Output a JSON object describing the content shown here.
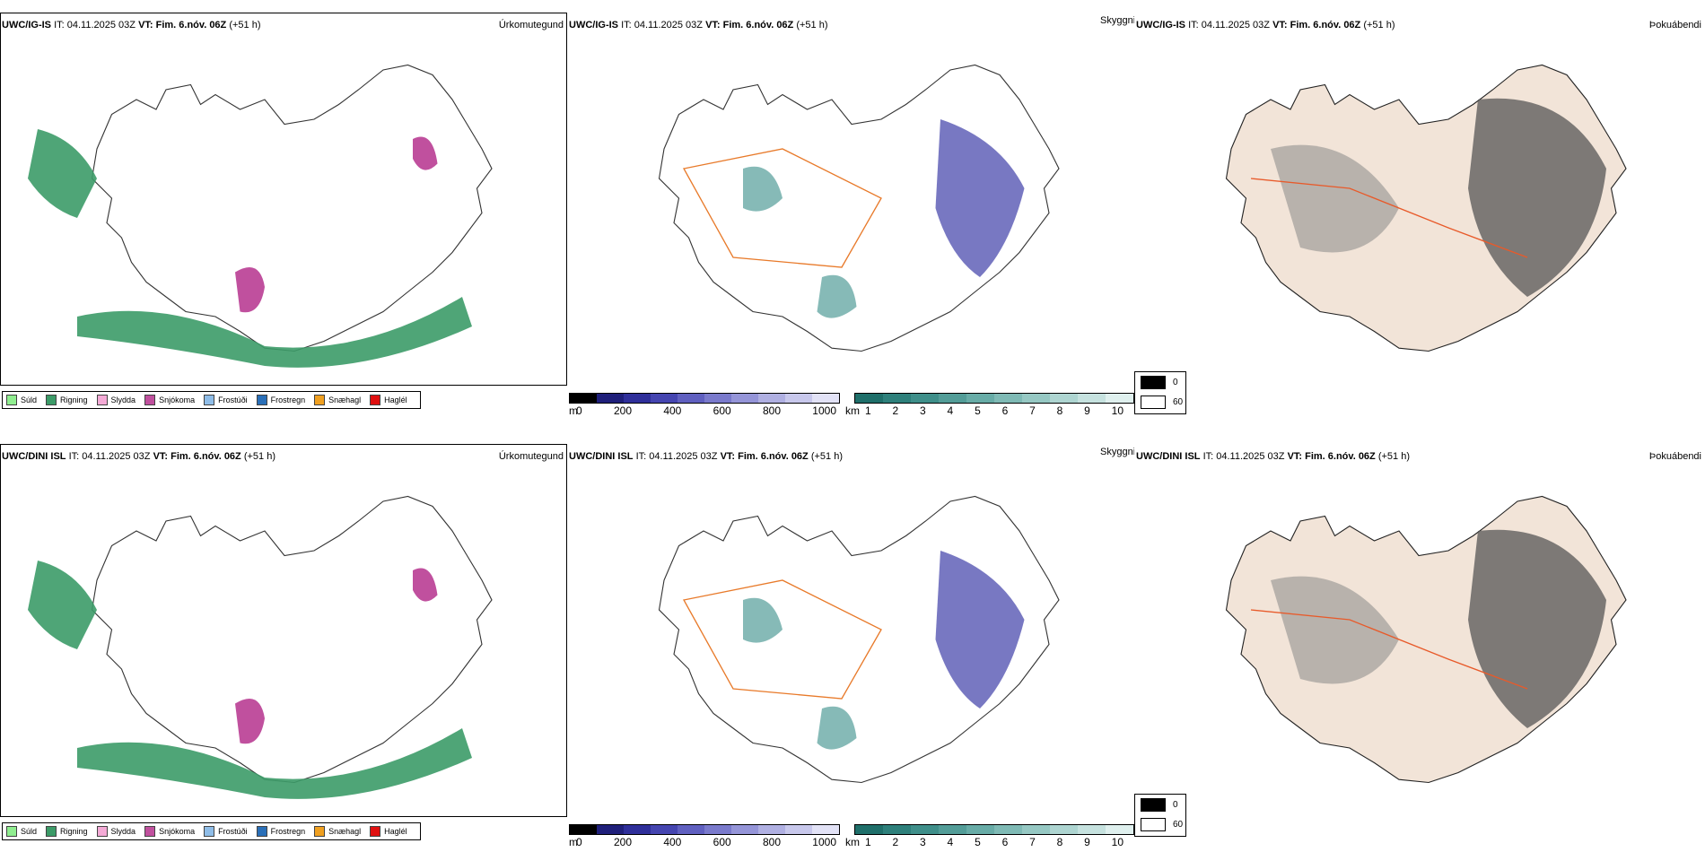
{
  "rows": [
    {
      "precip": {
        "model": "UWC/IG-IS",
        "it_label": "IT:",
        "it_value": "04.11.2025 03Z",
        "vt_label": "VT:",
        "vt_value": "Fim. 6.nóv. 06Z",
        "lead": "(+51 h)",
        "field": "Úrkomutegund"
      },
      "cloud": {
        "model": "UWC/IG-IS",
        "it_label": "IT:",
        "it_value": "04.11.2025 03Z",
        "vt_label": "VT:",
        "vt_value": "Fim. 6.nóv. 06Z",
        "lead": "(+51 h)",
        "field": "Skyggni"
      },
      "fog": {
        "model": "UWC/IG-IS",
        "it_label": "IT:",
        "it_value": "04.11.2025 03Z",
        "vt_label": "VT:",
        "vt_value": "Fim. 6.nóv. 06Z",
        "lead": "(+51 h)",
        "field": "Þokuábendi"
      }
    },
    {
      "precip": {
        "model": "UWC/DINI ISL",
        "it_label": "IT:",
        "it_value": "04.11.2025 03Z",
        "vt_label": "VT:",
        "vt_value": "Fim. 6.nóv. 06Z",
        "lead": "(+51 h)",
        "field": "Úrkomutegund"
      },
      "cloud": {
        "model": "UWC/DINI ISL",
        "it_label": "IT:",
        "it_value": "04.11.2025 03Z",
        "vt_label": "VT:",
        "vt_value": "Fim. 6.nóv. 06Z",
        "lead": "(+51 h)",
        "field": "Skyggni"
      },
      "fog": {
        "model": "UWC/DINI ISL",
        "it_label": "IT:",
        "it_value": "04.11.2025 03Z",
        "vt_label": "VT:",
        "vt_value": "Fim. 6.nóv. 06Z",
        "lead": "(+51 h)",
        "field": "Þokuábendi"
      }
    }
  ],
  "precip_legend": [
    {
      "label": "Súld",
      "color": "#90ee90"
    },
    {
      "label": "Rigning",
      "color": "#3c9b68"
    },
    {
      "label": "Slydda",
      "color": "#f4aad6"
    },
    {
      "label": "Snjókoma",
      "color": "#c0509e"
    },
    {
      "label": "Frostúði",
      "color": "#8fbde8"
    },
    {
      "label": "Frostregn",
      "color": "#2a6fb8"
    },
    {
      "label": "Snæhagl",
      "color": "#f0a020"
    },
    {
      "label": "Haglél",
      "color": "#e01010"
    }
  ],
  "ceiling_scale": {
    "unit": "m",
    "ticks": [
      "0",
      "200",
      "400",
      "600",
      "800",
      "1000"
    ],
    "colors": [
      "#000000",
      "#1f1f7a",
      "#2f2f9a",
      "#4545b0",
      "#6060c0",
      "#7a7acc",
      "#9595d8",
      "#b0b0e2",
      "#c8c8ec",
      "#e2e2f6"
    ]
  },
  "visibility_scale": {
    "unit": "km",
    "ticks": [
      "1",
      "2",
      "3",
      "4",
      "5",
      "6",
      "7",
      "8",
      "9",
      "10"
    ],
    "colors": [
      "#1f6f6a",
      "#2e807b",
      "#3f8f8a",
      "#539d98",
      "#68aca7",
      "#7fbab5",
      "#96c8c3",
      "#aed5d1",
      "#c6e2df",
      "#dff0ee"
    ]
  },
  "fog_legend": [
    {
      "label": "0",
      "color": "#000000"
    },
    {
      "label": "60",
      "color": "#ffffff"
    }
  ],
  "colors": {
    "land": "#f2e4d8",
    "roads": "#e87a2a",
    "rivers": "#6a7fd8",
    "coast": "#000000"
  }
}
